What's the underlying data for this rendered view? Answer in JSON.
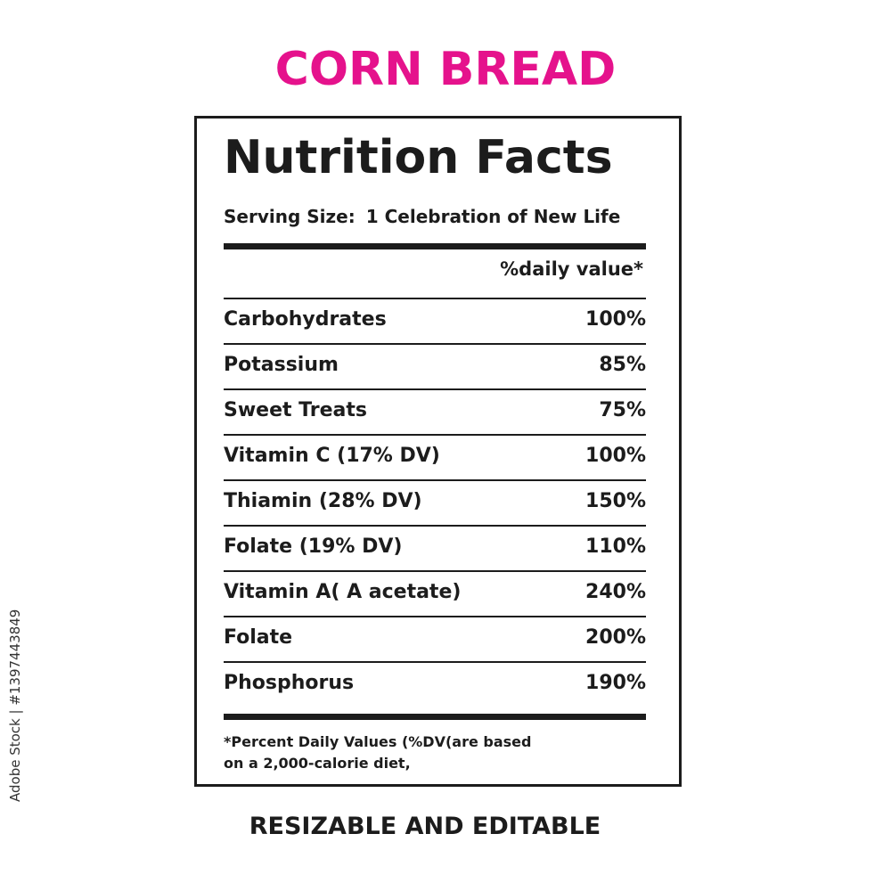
{
  "title": "CORN BREAD",
  "label": {
    "heading": "Nutrition Facts",
    "serving_label": "Serving Size:",
    "serving_value": "1 Celebration of New Life",
    "dv_header": "%daily value*",
    "rows": [
      {
        "name": "Carbohydrates",
        "value": "100%"
      },
      {
        "name": "Potassium",
        "value": "85%"
      },
      {
        "name": "Sweet Treats",
        "value": "75%"
      },
      {
        "name": "Vitamin C (17% DV)",
        "value": "100%"
      },
      {
        "name": "Thiamin  (28% DV)",
        "value": "150%"
      },
      {
        "name": "Folate (19% DV)",
        "value": "110%"
      },
      {
        "name": "Vitamin A( A acetate)",
        "value": "240%"
      },
      {
        "name": "Folate",
        "value": "200%"
      },
      {
        "name": "Phosphorus",
        "value": "190%"
      }
    ],
    "footnote_line1": "*Percent Daily Values (%DV(are  based",
    "footnote_line2": "on a 2,000-calorie diet,"
  },
  "subtitle": "RESIZABLE AND EDITABLE",
  "side_id": "Adobe Stock | #1397443849",
  "colors": {
    "title": "#e5128c",
    "text": "#1c1c1c"
  }
}
